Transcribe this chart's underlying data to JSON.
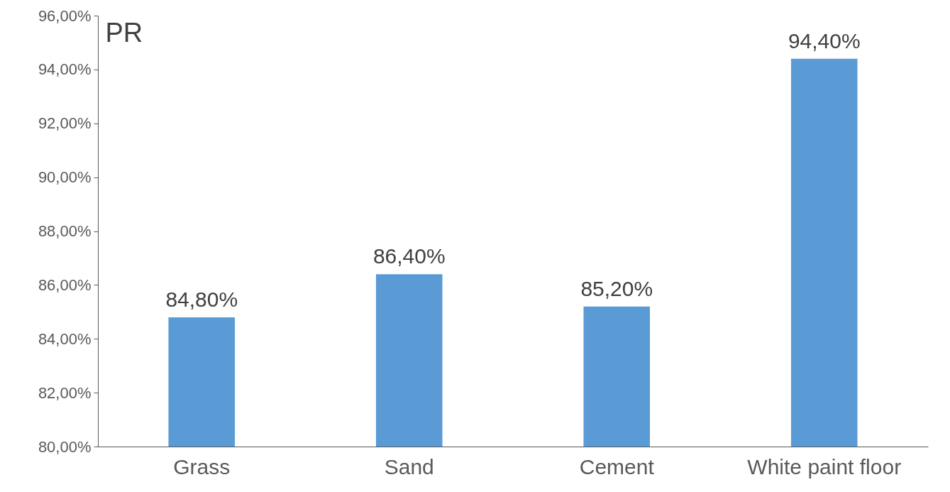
{
  "chart_data": {
    "type": "bar",
    "title": "PR",
    "categories": [
      "Grass",
      "Sand",
      "Cement",
      "White paint floor"
    ],
    "values": [
      84.8,
      86.4,
      85.2,
      94.4
    ],
    "value_labels": [
      "84,80%",
      "86,40%",
      "85,20%",
      "94,40%"
    ],
    "color": "#5b9bd5",
    "ylim": [
      80,
      96
    ],
    "yticks": [
      {
        "value": 80,
        "label": "80,00%"
      },
      {
        "value": 82,
        "label": "82,00%"
      },
      {
        "value": 84,
        "label": "84,00%"
      },
      {
        "value": 86,
        "label": "86,00%"
      },
      {
        "value": 88,
        "label": "88,00%"
      },
      {
        "value": 90,
        "label": "90,00%"
      },
      {
        "value": 92,
        "label": "92,00%"
      },
      {
        "value": 94,
        "label": "94,00%"
      },
      {
        "value": 96,
        "label": "96,00%"
      }
    ],
    "grid": false
  }
}
